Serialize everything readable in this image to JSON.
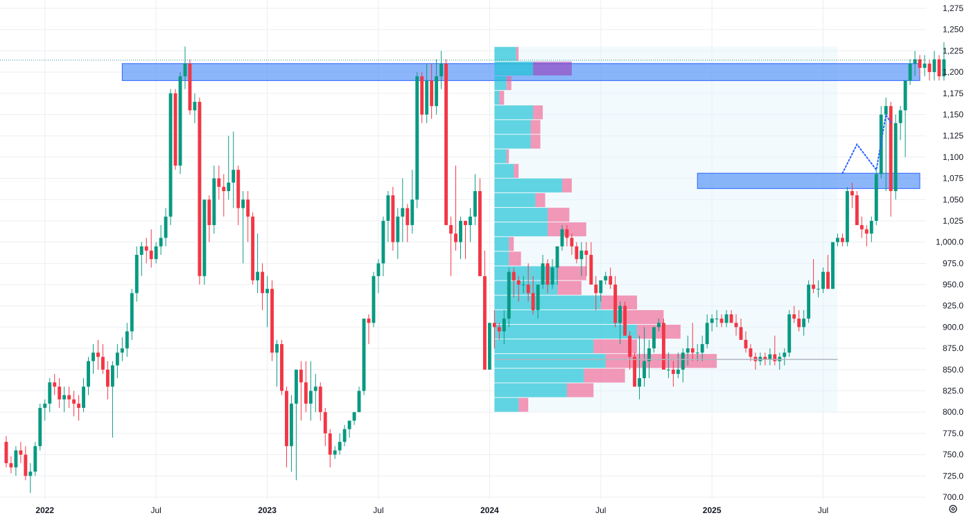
{
  "chart_data": {
    "type": "candlestick",
    "y_axis": {
      "min": 700,
      "max": 1275,
      "side": "right",
      "tick_labels": [
        "1,275",
        "1,250",
        "1,225",
        "1,200",
        "1,175",
        "1,150",
        "1,125",
        "1,100",
        "1,075",
        "1,050",
        "1,025",
        "1,000.0",
        "975.0",
        "950.0",
        "925.0",
        "900.0",
        "875.0",
        "850.0",
        "825.0",
        "800.0",
        "775.0",
        "750.0",
        "725.0",
        "700.0"
      ],
      "tick_values": [
        1275,
        1250,
        1225,
        1200,
        1175,
        1150,
        1125,
        1100,
        1075,
        1050,
        1025,
        1000,
        975,
        950,
        925,
        900,
        875,
        850,
        825,
        800,
        775,
        750,
        725,
        700
      ]
    },
    "x_axis": {
      "ticks": [
        {
          "label": "2022",
          "index": 8,
          "bold": true
        },
        {
          "label": "Jul",
          "index": 31,
          "bold": false
        },
        {
          "label": "2023",
          "index": 54,
          "bold": true
        },
        {
          "label": "Jul",
          "index": 77,
          "bold": false
        },
        {
          "label": "2024",
          "index": 100,
          "bold": true
        },
        {
          "label": "Jul",
          "index": 123,
          "bold": false
        },
        {
          "label": "2025",
          "index": 146,
          "bold": true
        },
        {
          "label": "Jul",
          "index": 169,
          "bold": false
        }
      ]
    },
    "bar_index_range": [
      -1,
      190
    ],
    "candles_ohlc": [
      [
        765,
        772,
        735,
        740
      ],
      [
        740,
        748,
        728,
        735
      ],
      [
        735,
        760,
        725,
        755
      ],
      [
        755,
        765,
        740,
        750
      ],
      [
        750,
        760,
        720,
        725
      ],
      [
        725,
        740,
        705,
        730
      ],
      [
        730,
        765,
        725,
        760
      ],
      [
        760,
        810,
        755,
        805
      ],
      [
        805,
        815,
        790,
        810
      ],
      [
        810,
        840,
        800,
        835
      ],
      [
        835,
        845,
        820,
        830
      ],
      [
        830,
        840,
        805,
        815
      ],
      [
        815,
        830,
        800,
        820
      ],
      [
        820,
        830,
        805,
        815
      ],
      [
        815,
        825,
        795,
        810
      ],
      [
        810,
        820,
        790,
        805
      ],
      [
        805,
        840,
        800,
        830
      ],
      [
        830,
        865,
        820,
        860
      ],
      [
        860,
        880,
        845,
        870
      ],
      [
        870,
        885,
        850,
        865
      ],
      [
        865,
        880,
        845,
        850
      ],
      [
        850,
        860,
        815,
        830
      ],
      [
        830,
        860,
        770,
        855
      ],
      [
        855,
        880,
        840,
        870
      ],
      [
        870,
        888,
        860,
        875
      ],
      [
        875,
        905,
        865,
        895
      ],
      [
        895,
        945,
        885,
        940
      ],
      [
        940,
        995,
        930,
        985
      ],
      [
        985,
        1000,
        960,
        995
      ],
      [
        995,
        1005,
        975,
        990
      ],
      [
        990,
        1015,
        970,
        980
      ],
      [
        980,
        1000,
        975,
        995
      ],
      [
        995,
        1020,
        985,
        1005
      ],
      [
        1005,
        1040,
        995,
        1030
      ],
      [
        1030,
        1180,
        1020,
        1175
      ],
      [
        1175,
        1180,
        1085,
        1090
      ],
      [
        1090,
        1200,
        1080,
        1195
      ],
      [
        1195,
        1230,
        1180,
        1210
      ],
      [
        1210,
        1215,
        1150,
        1155
      ],
      [
        1155,
        1175,
        1140,
        1165
      ],
      [
        1165,
        1170,
        950,
        960
      ],
      [
        960,
        1040,
        950,
        1050
      ],
      [
        1050,
        1055,
        1000,
        1020
      ],
      [
        1020,
        1090,
        1010,
        1075
      ],
      [
        1075,
        1090,
        1050,
        1065
      ],
      [
        1065,
        1080,
        1030,
        1060
      ],
      [
        1060,
        1125,
        1050,
        1070
      ],
      [
        1070,
        1130,
        1040,
        1085
      ],
      [
        1085,
        1090,
        1020,
        1040
      ],
      [
        1040,
        1060,
        975,
        1050
      ],
      [
        1050,
        1060,
        1000,
        1030
      ],
      [
        1030,
        1035,
        950,
        955
      ],
      [
        955,
        1010,
        940,
        965
      ],
      [
        965,
        975,
        920,
        940
      ],
      [
        940,
        960,
        900,
        945
      ],
      [
        945,
        955,
        860,
        870
      ],
      [
        870,
        885,
        830,
        880
      ],
      [
        880,
        885,
        820,
        825
      ],
      [
        825,
        830,
        735,
        760
      ],
      [
        760,
        820,
        730,
        810
      ],
      [
        810,
        835,
        720,
        850
      ],
      [
        850,
        860,
        790,
        835
      ],
      [
        835,
        860,
        800,
        810
      ],
      [
        810,
        860,
        790,
        825
      ],
      [
        825,
        845,
        800,
        830
      ],
      [
        830,
        835,
        790,
        800
      ],
      [
        800,
        805,
        760,
        775
      ],
      [
        775,
        780,
        735,
        750
      ],
      [
        750,
        760,
        745,
        755
      ],
      [
        755,
        775,
        750,
        765
      ],
      [
        765,
        785,
        760,
        780
      ],
      [
        780,
        790,
        770,
        790
      ],
      [
        790,
        800,
        785,
        800
      ],
      [
        800,
        830,
        800,
        825
      ],
      [
        825,
        910,
        820,
        910
      ],
      [
        910,
        915,
        880,
        905
      ],
      [
        905,
        965,
        900,
        960
      ],
      [
        960,
        980,
        940,
        975
      ],
      [
        975,
        1030,
        960,
        1025
      ],
      [
        1025,
        1060,
        1000,
        1055
      ],
      [
        1055,
        1065,
        990,
        1000
      ],
      [
        1000,
        1040,
        980,
        1030
      ],
      [
        1030,
        1075,
        1000,
        1040
      ],
      [
        1040,
        1045,
        1000,
        1020
      ],
      [
        1020,
        1085,
        1010,
        1050
      ],
      [
        1050,
        1200,
        1040,
        1195
      ],
      [
        1195,
        1200,
        1140,
        1150
      ],
      [
        1150,
        1210,
        1140,
        1190
      ],
      [
        1190,
        1210,
        1145,
        1160
      ],
      [
        1160,
        1215,
        1150,
        1195
      ],
      [
        1195,
        1225,
        1180,
        1210
      ],
      [
        1210,
        1215,
        1020,
        1020
      ],
      [
        1020,
        1030,
        960,
        1010
      ],
      [
        1010,
        1090,
        990,
        1000
      ],
      [
        1000,
        1030,
        980,
        1025
      ],
      [
        1025,
        1025,
        980,
        1020
      ],
      [
        1020,
        1040,
        1000,
        1030
      ],
      [
        1030,
        1080,
        1020,
        1060
      ],
      [
        1060,
        1075,
        960,
        960
      ],
      [
        960,
        990,
        850,
        850
      ],
      [
        850,
        900,
        870,
        905
      ],
      [
        905,
        920,
        875,
        900
      ],
      [
        900,
        905,
        885,
        895
      ],
      [
        895,
        920,
        880,
        910
      ],
      [
        910,
        970,
        900,
        965
      ],
      [
        965,
        970,
        935,
        955
      ],
      [
        955,
        960,
        930,
        950
      ],
      [
        950,
        960,
        940,
        950
      ],
      [
        950,
        975,
        930,
        940
      ],
      [
        940,
        960,
        915,
        920
      ],
      [
        920,
        950,
        910,
        950
      ],
      [
        950,
        985,
        945,
        975
      ],
      [
        975,
        980,
        940,
        950
      ],
      [
        950,
        980,
        945,
        970
      ],
      [
        970,
        995,
        950,
        995
      ],
      [
        995,
        1020,
        990,
        1015
      ],
      [
        1015,
        1020,
        995,
        1005
      ],
      [
        1005,
        1010,
        985,
        995
      ],
      [
        995,
        1000,
        975,
        980
      ],
      [
        980,
        1000,
        960,
        990
      ],
      [
        990,
        1000,
        960,
        985
      ],
      [
        985,
        1000,
        950,
        950
      ],
      [
        950,
        960,
        920,
        940
      ],
      [
        940,
        950,
        930,
        955
      ],
      [
        955,
        965,
        950,
        960
      ],
      [
        960,
        970,
        945,
        950
      ],
      [
        950,
        960,
        900,
        905
      ],
      [
        905,
        930,
        880,
        925
      ],
      [
        925,
        930,
        890,
        890
      ],
      [
        890,
        895,
        850,
        865
      ],
      [
        865,
        870,
        840,
        830
      ],
      [
        830,
        890,
        815,
        840
      ],
      [
        840,
        900,
        830,
        860
      ],
      [
        860,
        885,
        840,
        875
      ],
      [
        875,
        900,
        870,
        900
      ],
      [
        900,
        910,
        895,
        905
      ],
      [
        905,
        910,
        855,
        850
      ],
      [
        850,
        870,
        840,
        850
      ],
      [
        850,
        860,
        830,
        845
      ],
      [
        845,
        870,
        840,
        850
      ],
      [
        850,
        875,
        835,
        870
      ],
      [
        870,
        890,
        855,
        875
      ],
      [
        875,
        905,
        860,
        870
      ],
      [
        870,
        880,
        860,
        870
      ],
      [
        870,
        890,
        860,
        880
      ],
      [
        880,
        915,
        875,
        905
      ],
      [
        905,
        915,
        895,
        910
      ],
      [
        910,
        920,
        900,
        910
      ],
      [
        910,
        915,
        900,
        905
      ],
      [
        905,
        920,
        900,
        915
      ],
      [
        915,
        920,
        905,
        905
      ],
      [
        905,
        915,
        890,
        900
      ],
      [
        900,
        910,
        885,
        885
      ],
      [
        885,
        895,
        870,
        875
      ],
      [
        875,
        880,
        860,
        865
      ],
      [
        865,
        870,
        850,
        860
      ],
      [
        860,
        870,
        855,
        865
      ],
      [
        865,
        870,
        855,
        862
      ],
      [
        862,
        875,
        855,
        868
      ],
      [
        868,
        890,
        855,
        860
      ],
      [
        860,
        870,
        850,
        865
      ],
      [
        865,
        875,
        855,
        870
      ],
      [
        870,
        920,
        865,
        915
      ],
      [
        915,
        925,
        905,
        910
      ],
      [
        910,
        920,
        895,
        900
      ],
      [
        900,
        920,
        890,
        910
      ],
      [
        910,
        955,
        905,
        950
      ],
      [
        950,
        980,
        940,
        945
      ],
      [
        945,
        955,
        935,
        945
      ],
      [
        945,
        970,
        940,
        965
      ],
      [
        965,
        985,
        945,
        945
      ],
      [
        945,
        1000,
        945,
        1000
      ],
      [
        1000,
        1010,
        995,
        1005
      ],
      [
        1005,
        1010,
        995,
        1000
      ],
      [
        1000,
        1065,
        995,
        1060
      ],
      [
        1060,
        1070,
        1040,
        1055
      ],
      [
        1055,
        1060,
        1020,
        1020
      ],
      [
        1020,
        1030,
        1005,
        1015
      ],
      [
        1015,
        1020,
        995,
        1010
      ],
      [
        1010,
        1030,
        1000,
        1025
      ],
      [
        1025,
        1085,
        1020,
        1080
      ],
      [
        1080,
        1160,
        1075,
        1150
      ],
      [
        1150,
        1170,
        1060,
        1160
      ],
      [
        1160,
        1165,
        1030,
        1060
      ],
      [
        1060,
        1150,
        1050,
        1140
      ],
      [
        1140,
        1160,
        1120,
        1155
      ],
      [
        1155,
        1165,
        1100,
        1190
      ],
      [
        1190,
        1215,
        1185,
        1210
      ],
      [
        1210,
        1225,
        1195,
        1215
      ],
      [
        1215,
        1220,
        1195,
        1205
      ],
      [
        1205,
        1220,
        1195,
        1210
      ],
      [
        1210,
        1215,
        1190,
        1200
      ],
      [
        1200,
        1225,
        1190,
        1215
      ],
      [
        1215,
        1220,
        1190,
        1195
      ],
      [
        1195,
        1235,
        1190,
        1215
      ]
    ],
    "annotations": {
      "resistance_zone": {
        "from_index": 24,
        "to_index": 189,
        "low": 1190,
        "high": 1210,
        "color": "#4f8ff7"
      },
      "support_zone": {
        "from_index": 143,
        "to_index": 189,
        "low": 1063,
        "high": 1081,
        "color": "#4f8ff7"
      },
      "price_line": {
        "value": 1214,
        "color": "#2e8b8b",
        "style": "dotted"
      },
      "poc_line": {
        "from_index": 101,
        "to_index": 172,
        "value": 862,
        "color": "#b2b5be"
      },
      "projection_path": [
        [
          173,
          1081
        ],
        [
          176,
          1115
        ],
        [
          180,
          1085
        ],
        [
          182,
          1150
        ],
        [
          183,
          1140
        ]
      ],
      "projection_color": "#2962ff"
    },
    "volume_profile": {
      "from_index": 101,
      "to_index": 172,
      "price_low": 800,
      "price_high": 1230,
      "up_color": "#22c3d6",
      "down_color": "#f06292",
      "highlight_color": "#9c27b0",
      "rows": [
        [
          0.45,
          0.05
        ],
        [
          0.8,
          0.8
        ],
        [
          0.25,
          0.1
        ],
        [
          0.1,
          0.1
        ],
        [
          0.8,
          0.2
        ],
        [
          0.75,
          0.2
        ],
        [
          0.75,
          0.2
        ],
        [
          0.25,
          0.05
        ],
        [
          0.4,
          0.1
        ],
        [
          1.4,
          0.2
        ],
        [
          0.85,
          0.2
        ],
        [
          1.1,
          0.45
        ],
        [
          1.1,
          0.8
        ],
        [
          0.3,
          0.1
        ],
        [
          0.3,
          0.25
        ],
        [
          1.3,
          0.6
        ],
        [
          1.3,
          0.5
        ],
        [
          2.2,
          0.75
        ],
        [
          2.6,
          0.9
        ],
        [
          2.95,
          0.9
        ],
        [
          2.05,
          0.9
        ],
        [
          2.3,
          2.3
        ],
        [
          1.85,
          0.85
        ],
        [
          1.5,
          0.55
        ],
        [
          0.5,
          0.2
        ]
      ]
    },
    "colors": {
      "up": "#26a69a",
      "up_dark": "#089981",
      "down": "#f23645",
      "grid": "#eceef2",
      "axis_text": "#131722"
    }
  },
  "settings_icon": "gear-icon"
}
